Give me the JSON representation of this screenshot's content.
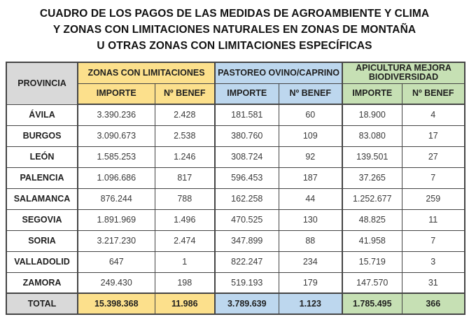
{
  "title": {
    "line1": "CUADRO DE LOS PAGOS DE LAS MEDIDAS DE AGROAMBIENTE Y CLIMA",
    "line2": "Y ZONAS CON LIMITACIONES NATURALES EN ZONAS DE MONTAÑA",
    "line3": "U OTRAS ZONAS CON LIMITACIONES ESPECÍFICAS"
  },
  "table": {
    "province_header": "PROVINCIA",
    "groups": [
      {
        "label": "ZONAS CON LIMITACIONES",
        "sub": [
          "IMPORTE",
          "Nº BENEF"
        ],
        "color": "#FCE08C"
      },
      {
        "label": "PASTOREO OVINO/CAPRINO",
        "sub": [
          "IMPORTE",
          "Nº BENEF"
        ],
        "color": "#BDD7EE"
      },
      {
        "label": "APICULTURA MEJORA BIODIVERSIDAD",
        "sub": [
          "IMPORTE",
          "Nº BENEF"
        ],
        "color": "#C6E0B4"
      }
    ],
    "rows": [
      [
        "ÁVILA",
        "3.390.236",
        "2.428",
        "181.581",
        "60",
        "18.900",
        "4"
      ],
      [
        "BURGOS",
        "3.090.673",
        "2.538",
        "380.760",
        "109",
        "83.080",
        "17"
      ],
      [
        "LEÓN",
        "1.585.253",
        "1.246",
        "308.724",
        "92",
        "139.501",
        "27"
      ],
      [
        "PALENCIA",
        "1.096.686",
        "817",
        "596.453",
        "187",
        "37.265",
        "7"
      ],
      [
        "SALAMANCA",
        "876.244",
        "788",
        "162.258",
        "44",
        "1.252.677",
        "259"
      ],
      [
        "SEGOVIA",
        "1.891.969",
        "1.496",
        "470.525",
        "130",
        "48.825",
        "11"
      ],
      [
        "SORIA",
        "3.217.230",
        "2.474",
        "347.899",
        "88",
        "41.958",
        "7"
      ],
      [
        "VALLADOLID",
        "647",
        "1",
        "822.247",
        "234",
        "15.719",
        "3"
      ],
      [
        "ZAMORA",
        "249.430",
        "198",
        "519.193",
        "179",
        "147.570",
        "31"
      ]
    ],
    "total_row": [
      "TOTAL",
      "15.398.368",
      "11.986",
      "3.789.639",
      "1.123",
      "1.785.495",
      "366"
    ]
  },
  "colors": {
    "group_yellow": "#FCE08C",
    "group_blue": "#BDD7EE",
    "group_green": "#C6E0B4",
    "header_gray": "#D9D9D9",
    "border": "#454545"
  }
}
